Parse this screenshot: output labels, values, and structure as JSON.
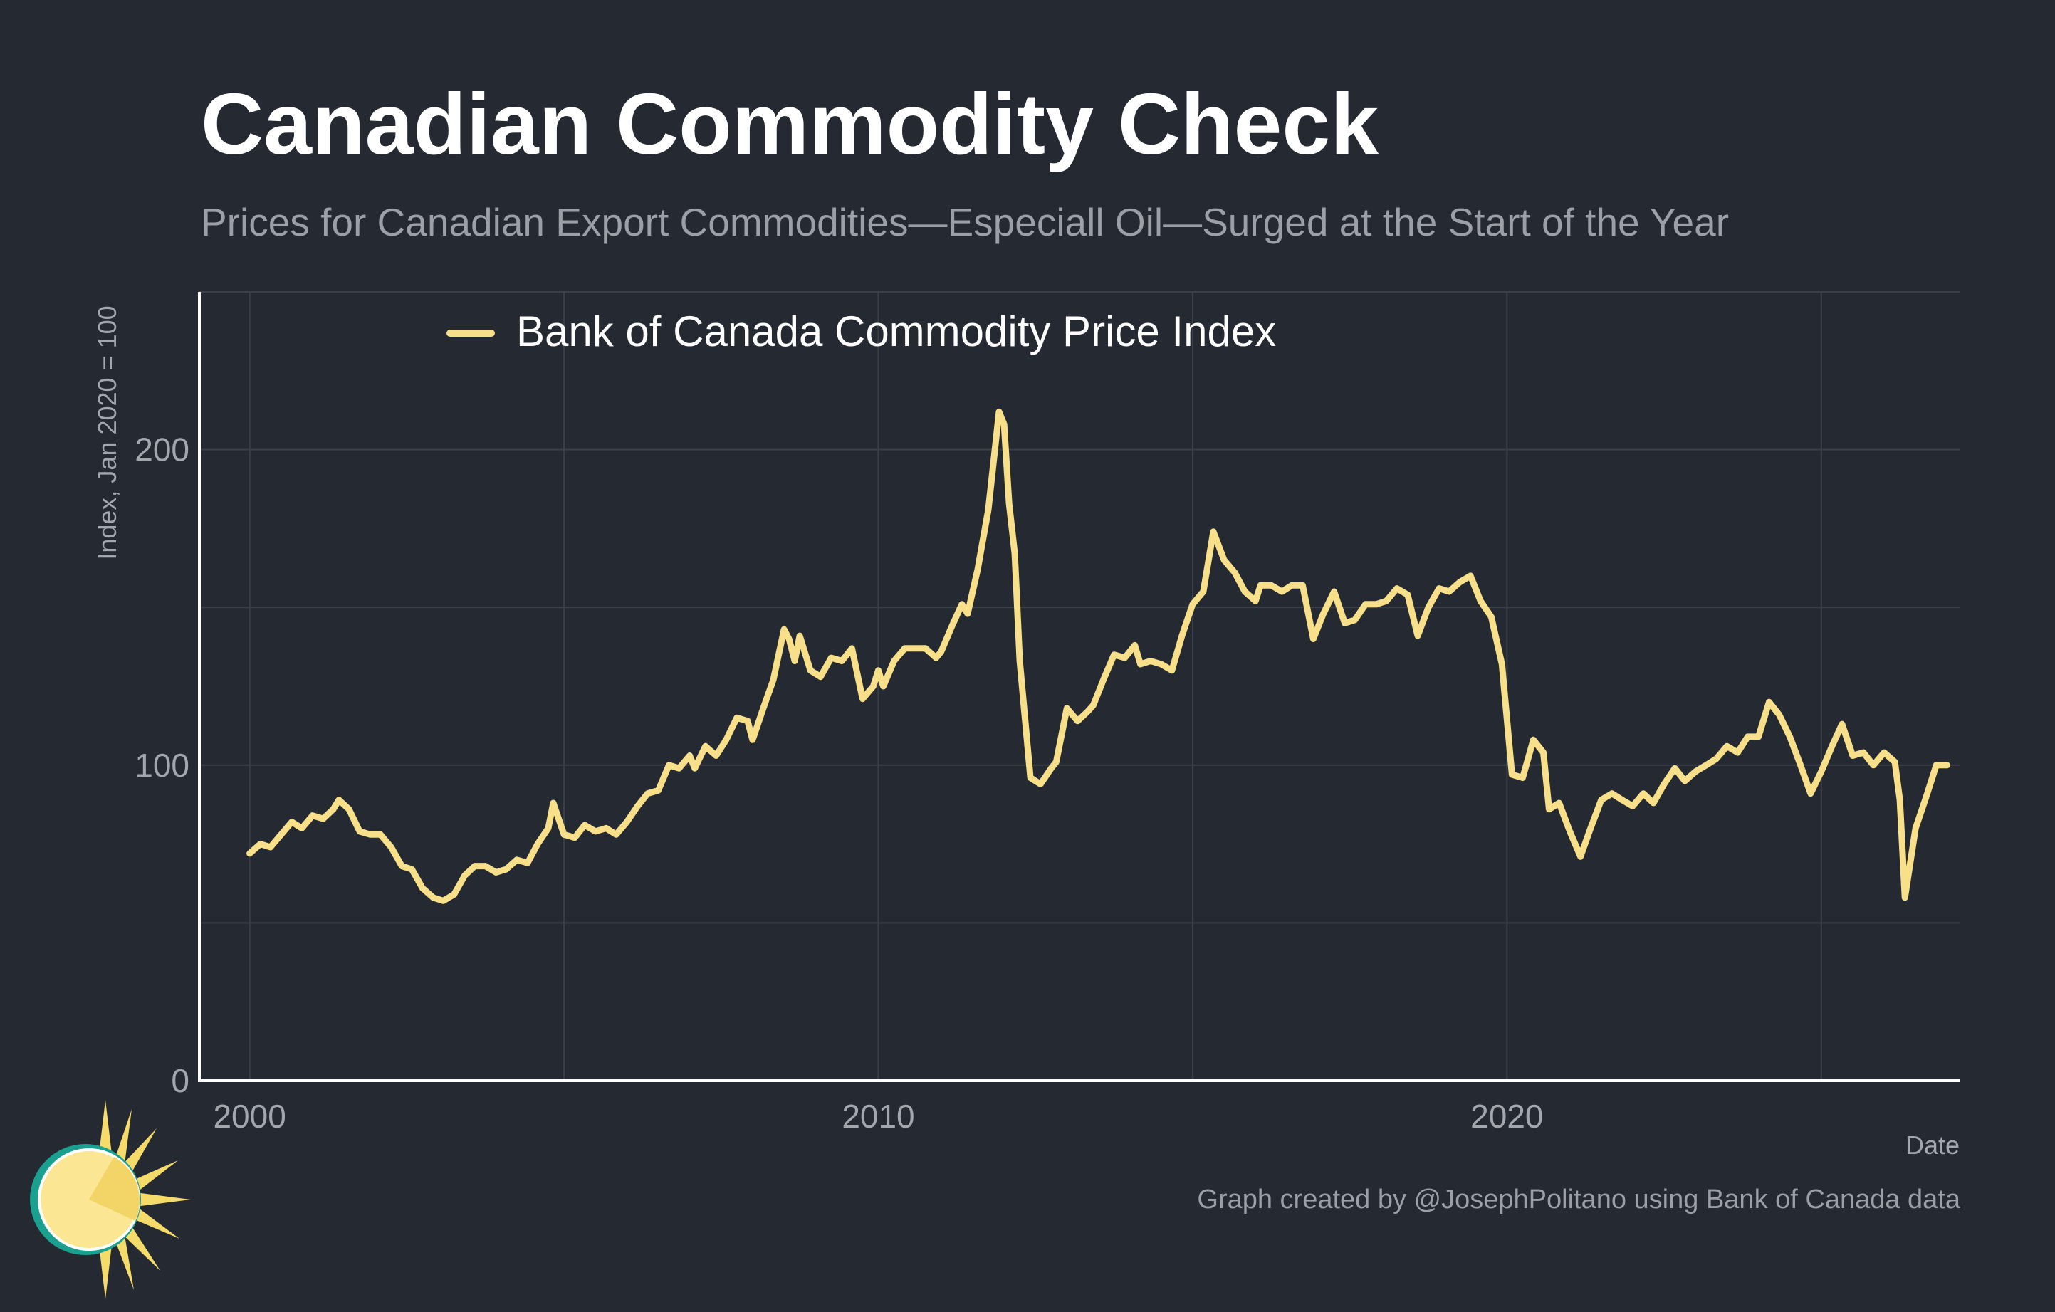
{
  "title": "Canadian Commodity Check",
  "subtitle": "Prices for Canadian Export Commodities—Especiall Oil—Surged at the Start of the Year",
  "credit": "Graph created by @JosephPolitano using Bank of Canada data",
  "logo": {
    "icon": "sun-logo-icon"
  },
  "colors": {
    "background": "#252932",
    "line": "#f8e08a",
    "grid": "#3b3f48",
    "axis": "#ffffff",
    "muted_text": "#9c9fa6"
  },
  "chart_data": {
    "type": "line",
    "title": "",
    "xlabel": "Date",
    "ylabel": "Index, Jan 2020 = 100",
    "xlim": [
      1999.2,
      2027.2
    ],
    "ylim": [
      0,
      250
    ],
    "xticks": [
      2000,
      2010,
      2020
    ],
    "xgrid": [
      2000,
      2005,
      2010,
      2015,
      2020,
      2025
    ],
    "yticks": [
      0,
      100,
      200
    ],
    "ygrid": [
      50,
      100,
      150,
      200,
      250
    ],
    "grid": true,
    "legend_position": "top-left",
    "series": [
      {
        "name": "Bank of Canada Commodity Price Index",
        "color": "#f8e08a",
        "points": [
          [
            2000.0,
            72
          ],
          [
            2000.17,
            75
          ],
          [
            2000.33,
            74
          ],
          [
            2000.5,
            78
          ],
          [
            2000.67,
            82
          ],
          [
            2000.83,
            80
          ],
          [
            2001.0,
            84
          ],
          [
            2001.17,
            83
          ],
          [
            2001.33,
            86
          ],
          [
            2001.42,
            89
          ],
          [
            2001.58,
            86
          ],
          [
            2001.75,
            79
          ],
          [
            2001.92,
            78
          ],
          [
            2002.08,
            78
          ],
          [
            2002.25,
            74
          ],
          [
            2002.42,
            68
          ],
          [
            2002.58,
            67
          ],
          [
            2002.75,
            61
          ],
          [
            2002.92,
            58
          ],
          [
            2003.08,
            57
          ],
          [
            2003.25,
            59
          ],
          [
            2003.42,
            65
          ],
          [
            2003.58,
            68
          ],
          [
            2003.75,
            68
          ],
          [
            2003.92,
            66
          ],
          [
            2004.08,
            67
          ],
          [
            2004.25,
            70
          ],
          [
            2004.42,
            69
          ],
          [
            2004.58,
            75
          ],
          [
            2004.75,
            80
          ],
          [
            2004.83,
            88
          ],
          [
            2005.0,
            78
          ],
          [
            2005.17,
            77
          ],
          [
            2005.33,
            81
          ],
          [
            2005.5,
            79
          ],
          [
            2005.67,
            80
          ],
          [
            2005.83,
            78
          ],
          [
            2006.0,
            82
          ],
          [
            2006.17,
            87
          ],
          [
            2006.33,
            91
          ],
          [
            2006.5,
            92
          ],
          [
            2006.67,
            100
          ],
          [
            2006.83,
            99
          ],
          [
            2007.0,
            103
          ],
          [
            2007.08,
            99
          ],
          [
            2007.25,
            106
          ],
          [
            2007.42,
            103
          ],
          [
            2007.58,
            108
          ],
          [
            2007.75,
            115
          ],
          [
            2007.92,
            114
          ],
          [
            2008.0,
            108
          ],
          [
            2008.17,
            118
          ],
          [
            2008.33,
            127
          ],
          [
            2008.5,
            143
          ],
          [
            2008.58,
            140
          ],
          [
            2008.67,
            133
          ],
          [
            2008.75,
            141
          ],
          [
            2008.92,
            130
          ],
          [
            2009.08,
            128
          ],
          [
            2009.25,
            134
          ],
          [
            2009.42,
            133
          ],
          [
            2009.58,
            137
          ],
          [
            2009.75,
            121
          ],
          [
            2009.92,
            125
          ],
          [
            2010.0,
            130
          ],
          [
            2010.08,
            125
          ],
          [
            2010.25,
            133
          ],
          [
            2010.42,
            137
          ],
          [
            2010.58,
            137
          ],
          [
            2010.75,
            137
          ],
          [
            2010.92,
            134
          ],
          [
            2011.0,
            136
          ],
          [
            2011.17,
            144
          ],
          [
            2011.33,
            151
          ],
          [
            2011.42,
            148
          ],
          [
            2011.58,
            162
          ],
          [
            2011.75,
            181
          ],
          [
            2011.92,
            212
          ],
          [
            2012.0,
            208
          ],
          [
            2012.08,
            183
          ],
          [
            2012.17,
            167
          ],
          [
            2012.25,
            133
          ],
          [
            2012.42,
            96
          ],
          [
            2012.58,
            94
          ],
          [
            2012.75,
            99
          ],
          [
            2012.83,
            101
          ],
          [
            2013.0,
            118
          ],
          [
            2013.17,
            114
          ],
          [
            2013.33,
            117
          ],
          [
            2013.42,
            119
          ],
          [
            2013.58,
            127
          ],
          [
            2013.75,
            135
          ],
          [
            2013.92,
            134
          ],
          [
            2014.08,
            138
          ],
          [
            2014.17,
            132
          ],
          [
            2014.33,
            133
          ],
          [
            2014.5,
            132
          ],
          [
            2014.67,
            130
          ],
          [
            2014.83,
            141
          ],
          [
            2015.0,
            151
          ],
          [
            2015.17,
            155
          ],
          [
            2015.33,
            174
          ],
          [
            2015.5,
            165
          ],
          [
            2015.67,
            161
          ],
          [
            2015.83,
            155
          ],
          [
            2016.0,
            152
          ],
          [
            2016.08,
            157
          ],
          [
            2016.25,
            157
          ],
          [
            2016.42,
            155
          ],
          [
            2016.58,
            157
          ],
          [
            2016.75,
            157
          ],
          [
            2016.92,
            140
          ],
          [
            2017.08,
            148
          ],
          [
            2017.25,
            155
          ],
          [
            2017.42,
            145
          ],
          [
            2017.58,
            146
          ],
          [
            2017.75,
            151
          ],
          [
            2017.92,
            151
          ],
          [
            2018.08,
            152
          ],
          [
            2018.25,
            156
          ],
          [
            2018.42,
            154
          ],
          [
            2018.58,
            141
          ],
          [
            2018.75,
            150
          ],
          [
            2018.92,
            156
          ],
          [
            2019.08,
            155
          ],
          [
            2019.25,
            158
          ],
          [
            2019.42,
            160
          ],
          [
            2019.58,
            152
          ],
          [
            2019.75,
            147
          ],
          [
            2019.92,
            132
          ],
          [
            2020.08,
            97
          ],
          [
            2020.25,
            96
          ],
          [
            2020.42,
            108
          ],
          [
            2020.58,
            104
          ],
          [
            2020.67,
            86
          ],
          [
            2020.83,
            88
          ],
          [
            2021.0,
            79
          ],
          [
            2021.17,
            71
          ],
          [
            2021.33,
            80
          ],
          [
            2021.5,
            89
          ],
          [
            2021.67,
            91
          ],
          [
            2021.83,
            89
          ],
          [
            2022.0,
            87
          ],
          [
            2022.17,
            91
          ],
          [
            2022.33,
            88
          ],
          [
            2022.5,
            94
          ],
          [
            2022.67,
            99
          ],
          [
            2022.83,
            95
          ],
          [
            2023.0,
            98
          ],
          [
            2023.17,
            100
          ],
          [
            2023.33,
            102
          ],
          [
            2023.5,
            106
          ],
          [
            2023.67,
            104
          ],
          [
            2023.83,
            109
          ],
          [
            2024.0,
            109
          ],
          [
            2024.17,
            120
          ],
          [
            2024.33,
            116
          ],
          [
            2024.5,
            109
          ],
          [
            2024.67,
            100
          ],
          [
            2024.83,
            91
          ],
          [
            2025.0,
            98
          ],
          [
            2025.17,
            106
          ],
          [
            2025.33,
            113
          ],
          [
            2025.5,
            103
          ],
          [
            2025.67,
            104
          ],
          [
            2025.83,
            100
          ],
          [
            2026.0,
            104
          ],
          [
            2026.17,
            101
          ],
          [
            2026.25,
            89
          ],
          [
            2026.33,
            58
          ],
          [
            2026.5,
            80
          ],
          [
            2026.67,
            90
          ],
          [
            2026.83,
            100
          ],
          [
            2027.0,
            100
          ]
        ]
      }
    ]
  }
}
